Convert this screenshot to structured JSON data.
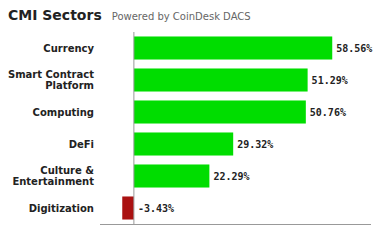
{
  "chart_data": {
    "type": "bar",
    "orientation": "horizontal",
    "title": "CMI Sectors",
    "subtitle": "Powered by CoinDesk DACS",
    "categories": [
      "Currency",
      "Smart Contract\nPlatform",
      "Computing",
      "DeFi",
      "Culture &\nEntertainment",
      "Digitization"
    ],
    "values": [
      58.56,
      51.29,
      50.76,
      29.32,
      22.29,
      -3.43
    ],
    "value_labels": [
      "58.56%",
      "51.29%",
      "50.76%",
      "29.32%",
      "22.29%",
      "-3.43%"
    ],
    "colors": [
      "#00dd00",
      "#00dd00",
      "#00dd00",
      "#00dd00",
      "#00dd00",
      "#aa1111"
    ],
    "data_labels": true,
    "xlim": [
      -10,
      70
    ],
    "tick_labels": "y",
    "grid": false
  }
}
